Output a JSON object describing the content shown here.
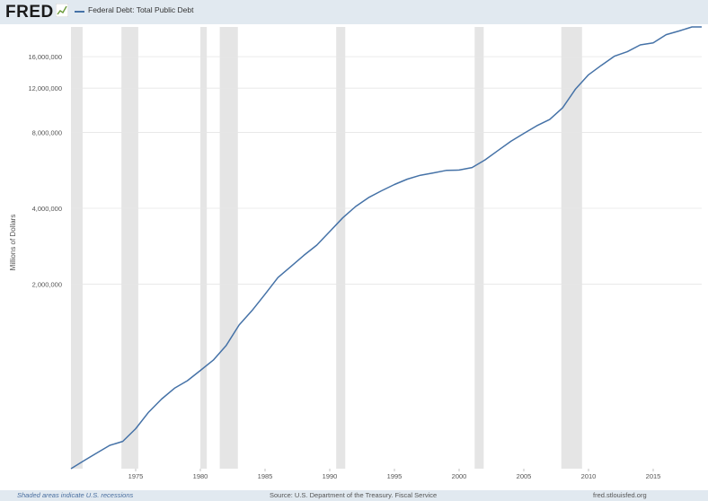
{
  "header": {
    "logo_text": "FRED",
    "legend_label": "Federal Debt: Total Public Debt"
  },
  "footer": {
    "recession_note": "Shaded areas indicate U.S. recessions",
    "source": "Source: U.S. Department of the Treasury. Fiscal Service",
    "site": "fred.stlouisfed.org"
  },
  "colors": {
    "series": "#4572a7",
    "recession": "#e5e5e5",
    "grid": "#e6e6e6",
    "background": "#e1e9f0"
  },
  "chart_data": {
    "type": "line",
    "title": "",
    "xlabel": "",
    "ylabel": "Millions of Dollars",
    "y_scale": "log",
    "x_range": [
      1970.0,
      2018.75
    ],
    "ylim": [
      370000,
      21000000
    ],
    "grid": "horizontal",
    "legend_position": "top-left",
    "x_ticks": [
      "1975",
      "1980",
      "1985",
      "1990",
      "1995",
      "2000",
      "2005",
      "2010",
      "2015"
    ],
    "y_ticks": [
      {
        "value": 2000000,
        "label": "2,000,000"
      },
      {
        "value": 4000000,
        "label": "4,000,000"
      },
      {
        "value": 8000000,
        "label": "8,000,000"
      },
      {
        "value": 12000000,
        "label": "12,000,000"
      },
      {
        "value": 16000000,
        "label": "16,000,000"
      }
    ],
    "recessions": [
      [
        1970.0,
        1970.9
      ],
      [
        1973.9,
        1975.2
      ],
      [
        1980.0,
        1980.5
      ],
      [
        1981.5,
        1982.9
      ],
      [
        1990.5,
        1991.2
      ],
      [
        2001.2,
        2001.9
      ],
      [
        2007.9,
        2009.5
      ]
    ],
    "series": [
      {
        "name": "Federal Debt: Total Public Debt",
        "x": [
          1970.0,
          1971.0,
          1972.0,
          1973.0,
          1974.0,
          1975.0,
          1976.0,
          1977.0,
          1978.0,
          1979.0,
          1980.0,
          1981.0,
          1982.0,
          1983.0,
          1984.0,
          1985.0,
          1986.0,
          1987.0,
          1988.0,
          1989.0,
          1990.0,
          1991.0,
          1992.0,
          1993.0,
          1994.0,
          1995.0,
          1996.0,
          1997.0,
          1998.0,
          1999.0,
          2000.0,
          2001.0,
          2002.0,
          2003.0,
          2004.0,
          2005.0,
          2006.0,
          2007.0,
          2008.0,
          2009.0,
          2010.0,
          2011.0,
          2012.0,
          2013.0,
          2014.0,
          2015.0,
          2016.0,
          2017.0,
          2018.0,
          2018.75
        ],
        "y": [
          370000,
          398000,
          427000,
          458000,
          475000,
          533000,
          620000,
          699000,
          772000,
          827000,
          908000,
          998000,
          1142000,
          1377000,
          1572000,
          1823000,
          2125000,
          2350000,
          2602000,
          2857000,
          3233000,
          3665000,
          4065000,
          4411000,
          4693000,
          4974000,
          5225000,
          5413000,
          5526000,
          5656000,
          5674000,
          5807000,
          6228000,
          6783000,
          7379000,
          7933000,
          8507000,
          9008000,
          10025000,
          11910000,
          13562000,
          14790000,
          16066000,
          16738000,
          17824000,
          18150000,
          19573000,
          20245000,
          21000000,
          21500000
        ]
      }
    ]
  }
}
